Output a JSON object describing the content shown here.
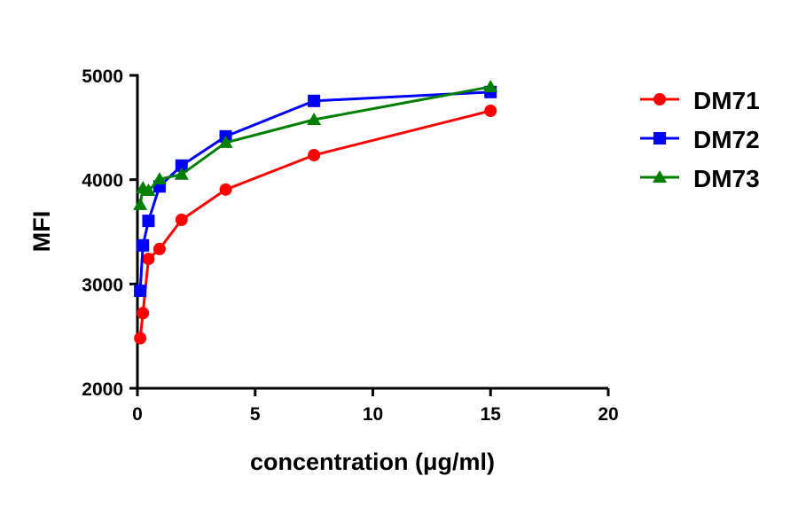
{
  "chart_data": {
    "type": "line",
    "title": "",
    "xlabel": "concentration (μg/ml)",
    "ylabel": "MFI",
    "xlim": [
      0,
      20
    ],
    "ylim": [
      2000,
      5000
    ],
    "xticks": [
      "0",
      "5",
      "10",
      "15",
      "20"
    ],
    "yticks": [
      "2000",
      "3000",
      "4000",
      "5000"
    ],
    "grid": false,
    "legend_position": "right",
    "x": [
      0.117,
      0.234,
      0.469,
      0.938,
      1.875,
      3.75,
      7.5,
      15
    ],
    "series": [
      {
        "name": "DM71",
        "color": "#ff0000",
        "marker": "circle",
        "values": [
          2480,
          2720,
          3240,
          3335,
          3615,
          3905,
          4235,
          4660
        ]
      },
      {
        "name": "DM72",
        "color": "#0000ff",
        "marker": "square",
        "values": [
          2935,
          3370,
          3605,
          3935,
          4135,
          4415,
          4755,
          4840
        ]
      },
      {
        "name": "DM73",
        "color": "#007f00",
        "marker": "triangle",
        "values": [
          3760,
          3920,
          3895,
          4005,
          4050,
          4355,
          4575,
          4890
        ]
      }
    ]
  }
}
